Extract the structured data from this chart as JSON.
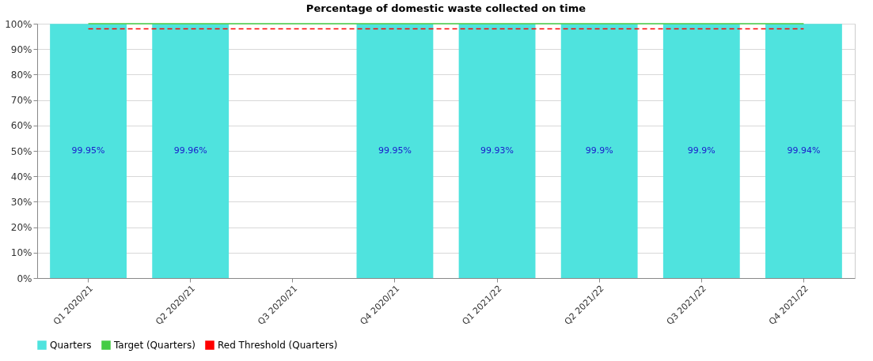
{
  "chart_data": {
    "type": "bar",
    "title": "Percentage of domestic waste collected on time",
    "categories": [
      "Q1 2020/21",
      "Q2 2020/21",
      "Q3 2020/21",
      "Q4 2020/21",
      "Q1 2021/22",
      "Q2 2021/22",
      "Q3 2021/22",
      "Q4 2021/22"
    ],
    "series": [
      {
        "name": "Quarters",
        "color": "#4fe3de",
        "values": [
          99.95,
          99.96,
          null,
          99.95,
          99.93,
          99.9,
          99.9,
          99.94
        ],
        "value_labels": [
          "99.95%",
          "99.96%",
          null,
          "99.95%",
          "99.93%",
          "99.9%",
          "99.9%",
          "99.94%"
        ]
      },
      {
        "name": "Target (Quarters)",
        "type": "line",
        "color": "#44cc44",
        "line_style": "solid",
        "values": [
          100,
          100,
          100,
          100,
          100,
          100,
          100,
          100
        ]
      },
      {
        "name": "Red Threshold (Quarters)",
        "type": "line",
        "color": "#ff0000",
        "line_style": "dashed",
        "values": [
          98,
          98,
          98,
          98,
          98,
          98,
          98,
          98
        ]
      }
    ],
    "ylim": [
      0,
      100
    ],
    "yticks": [
      {
        "value": 0,
        "label": "0%"
      },
      {
        "value": 10,
        "label": "10%"
      },
      {
        "value": 20,
        "label": "20%"
      },
      {
        "value": 30,
        "label": "30%"
      },
      {
        "value": 40,
        "label": "40%"
      },
      {
        "value": 50,
        "label": "50%"
      },
      {
        "value": 60,
        "label": "60%"
      },
      {
        "value": 70,
        "label": "70%"
      },
      {
        "value": 80,
        "label": "80%"
      },
      {
        "value": 90,
        "label": "90%"
      },
      {
        "value": 100,
        "label": "100%"
      }
    ],
    "grid": "y",
    "legend": "bottom",
    "marker": "none"
  }
}
